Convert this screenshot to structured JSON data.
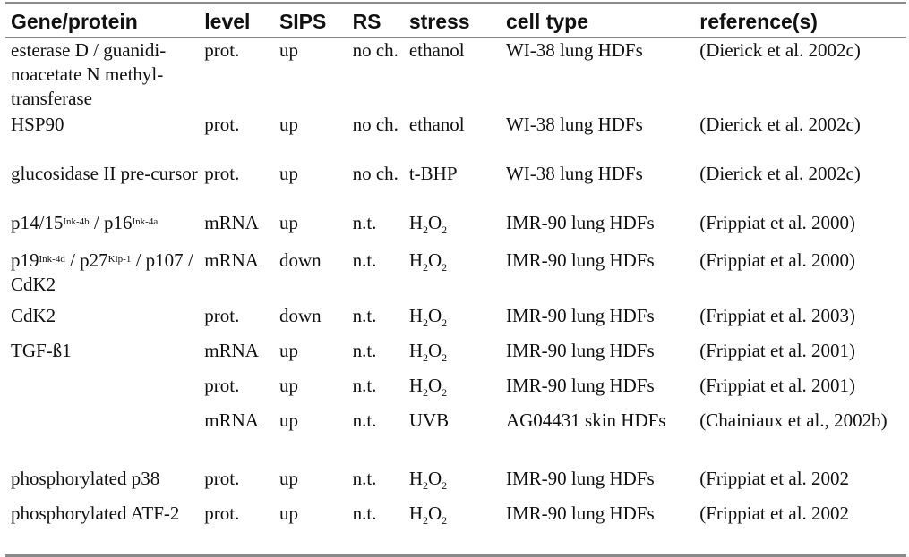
{
  "headers": [
    "Gene/protein",
    "level",
    "SIPS",
    "RS",
    "stress",
    "cell type",
    "reference(s)"
  ],
  "rows": [
    {
      "gene": "esterase D / guanidi-noacetate N methyl-transferase",
      "level": "prot.",
      "sips": "up",
      "rs": "no ch.",
      "stress": "ethanol",
      "cell": "WI-38 lung HDFs",
      "ref": "(Dierick et al. 2002c)"
    },
    {
      "gene": "HSP90",
      "level": "prot.",
      "sips": "up",
      "rs": "no ch.",
      "stress": "ethanol",
      "cell": "WI-38 lung HDFs",
      "ref": "(Dierick et al. 2002c)"
    },
    {
      "gene": "glucosidase II pre-cursor",
      "level": "prot.",
      "sips": "up",
      "rs": "no ch.",
      "stress": "t-BHP",
      "cell": "WI-38 lung HDFs",
      "ref": "(Dierick et al. 2002c)"
    },
    {
      "gene_parts": [
        "p14/15",
        "Ink-4b",
        " / p16",
        "Ink-4a"
      ],
      "level": "mRNA",
      "sips": "up",
      "rs": "n.t.",
      "stress_parts": [
        "H",
        "2",
        "O",
        "2"
      ],
      "cell": "IMR-90 lung HDFs",
      "ref": "(Frippiat et al. 2000)"
    },
    {
      "gene_parts": [
        "p19",
        "Ink-4d",
        " / p27",
        "Kip-1",
        " / p107 / CdK2"
      ],
      "level": "mRNA",
      "sips": "down",
      "rs": "n.t.",
      "stress_parts": [
        "H",
        "2",
        "O",
        "2"
      ],
      "cell": "IMR-90 lung HDFs",
      "ref": "(Frippiat et al. 2000)"
    },
    {
      "gene": "CdK2",
      "level": "prot.",
      "sips": "down",
      "rs": "n.t.",
      "stress_parts": [
        "H",
        "2",
        "O",
        "2"
      ],
      "cell": "IMR-90 lung HDFs",
      "ref": "(Frippiat et al. 2003)"
    },
    {
      "gene": "TGF-ß1",
      "level": "mRNA",
      "sips": "up",
      "rs": "n.t.",
      "stress_parts": [
        "H",
        "2",
        "O",
        "2"
      ],
      "cell": "IMR-90 lung HDFs",
      "ref": "(Frippiat et al. 2001)"
    },
    {
      "gene": "",
      "level": "prot.",
      "sips": "up",
      "rs": "n.t.",
      "stress_parts": [
        "H",
        "2",
        "O",
        "2"
      ],
      "cell": "IMR-90 lung HDFs",
      "ref": "(Frippiat et al. 2001)"
    },
    {
      "gene": "",
      "level": "mRNA",
      "sips": "up",
      "rs": "n.t.",
      "stress": "UVB",
      "cell": "AG04431 skin HDFs",
      "ref": "(Chainiaux et al., 2002b)"
    },
    {
      "gene": "phosphorylated p38",
      "level": "prot.",
      "sips": "up",
      "rs": "n.t.",
      "stress_parts": [
        "H",
        "2",
        "O",
        "2"
      ],
      "cell": "IMR-90 lung HDFs",
      "ref": "(Frippiat et al. 2002"
    },
    {
      "gene": "phosphorylated ATF-2",
      "level": "prot.",
      "sips": "up",
      "rs": "n.t.",
      "stress_parts": [
        "H",
        "2",
        "O",
        "2"
      ],
      "cell": "IMR-90 lung HDFs",
      "ref": "(Frippiat et al. 2002"
    }
  ]
}
